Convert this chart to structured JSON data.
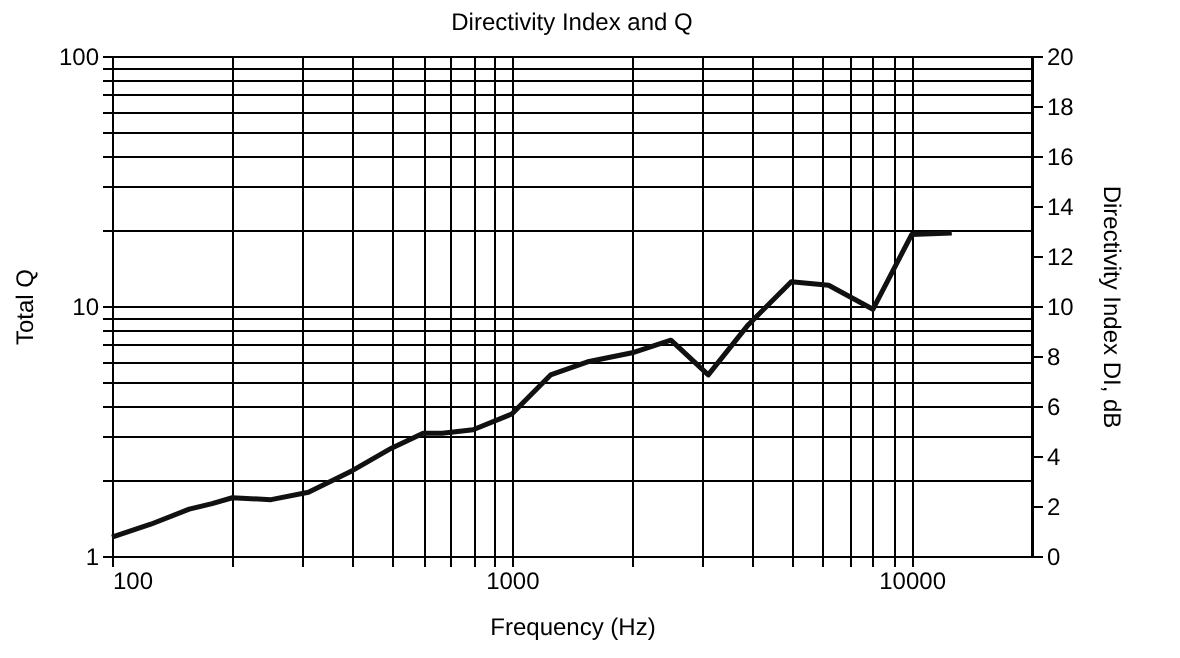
{
  "chart_data": {
    "type": "line",
    "title": "Directivity Index and Q",
    "xlabel": "Frequency (Hz)",
    "ylabel": "Total Q",
    "y2label": "Directivity Index DI, dB",
    "x": [
      100,
      125,
      156,
      178,
      200,
      250,
      310,
      400,
      500,
      600,
      670,
      800,
      1000,
      1250,
      1560,
      2000,
      2500,
      3100,
      3900,
      5000,
      6200,
      8000,
      10000,
      12600
    ],
    "series": [
      {
        "color": "#111111",
        "values": [
          1.19,
          1.34,
          1.54,
          1.62,
          1.71,
          1.68,
          1.8,
          2.2,
          2.7,
          3.1,
          3.1,
          3.2,
          3.7,
          5.3,
          6.0,
          6.5,
          7.3,
          5.3,
          8.4,
          12.5,
          12.1,
          9.7,
          19.3,
          19.6
        ]
      }
    ],
    "log": "xy",
    "xlim": [
      100,
      20000
    ],
    "ylim": [
      1,
      100
    ],
    "y2lim": [
      0,
      20
    ],
    "xticks": [
      100,
      {
        "value": 200,
        "label": null
      },
      {
        "value": 300,
        "label": null
      },
      {
        "value": 400,
        "label": null
      },
      {
        "value": 500,
        "label": null
      },
      {
        "value": 600,
        "label": null
      },
      {
        "value": 700,
        "label": null
      },
      {
        "value": 800,
        "label": null
      },
      {
        "value": 900,
        "label": null
      },
      1000,
      {
        "value": 2000,
        "label": null
      },
      {
        "value": 3000,
        "label": null
      },
      {
        "value": 4000,
        "label": null
      },
      {
        "value": 5000,
        "label": null
      },
      {
        "value": 6000,
        "label": null
      },
      {
        "value": 7000,
        "label": null
      },
      {
        "value": 8000,
        "label": null
      },
      {
        "value": 9000,
        "label": null
      },
      10000
    ],
    "yticks": [
      1,
      {
        "value": 2,
        "label": null
      },
      {
        "value": 3,
        "label": null
      },
      {
        "value": 4,
        "label": null
      },
      {
        "value": 5,
        "label": null
      },
      {
        "value": 6,
        "label": null
      },
      {
        "value": 7,
        "label": null
      },
      {
        "value": 8,
        "label": null
      },
      {
        "value": 9,
        "label": null
      },
      10,
      {
        "value": 20,
        "label": null
      },
      {
        "value": 30,
        "label": null
      },
      {
        "value": 40,
        "label": null
      },
      {
        "value": 50,
        "label": null
      },
      {
        "value": 60,
        "label": null
      },
      {
        "value": 70,
        "label": null
      },
      {
        "value": 80,
        "label": null
      },
      {
        "value": 90,
        "label": null
      },
      100
    ],
    "y2ticks": [
      0,
      2,
      4,
      6,
      8,
      10,
      12,
      14,
      16,
      18,
      20
    ],
    "grid": true,
    "marker": "none",
    "line_style": "solid"
  }
}
